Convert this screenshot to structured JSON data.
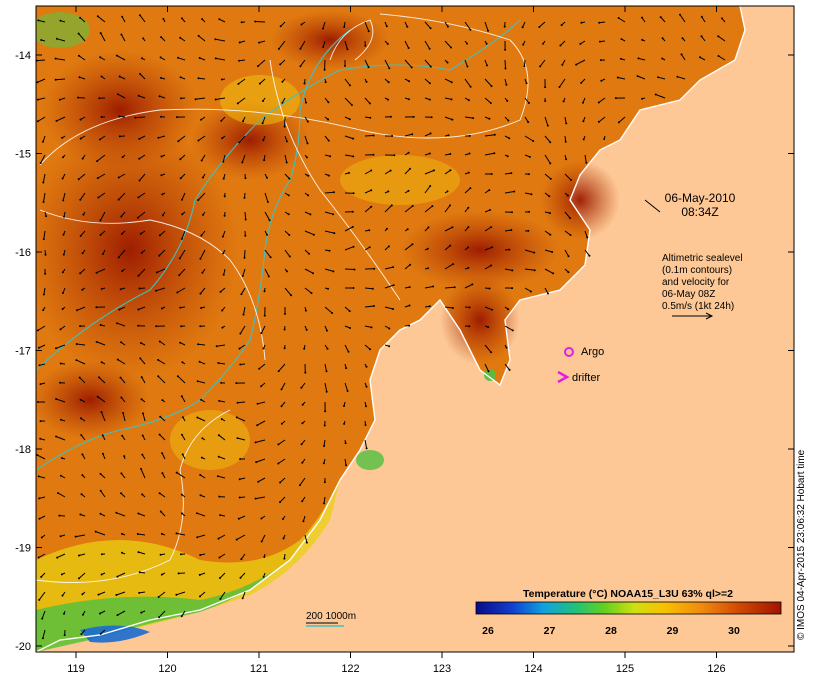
{
  "map": {
    "lon_ticks": [
      "119",
      "120",
      "121",
      "122",
      "123",
      "124",
      "125",
      "126"
    ],
    "lat_ticks": [
      "-14",
      "-15",
      "-16",
      "-17",
      "-18",
      "-19",
      "-20"
    ],
    "timestamp_date": "06-May-2010",
    "timestamp_time": "08:34Z",
    "legend_lines": [
      "Altimetric sealevel",
      "(0.1m contours)",
      "and velocity for",
      "06-May 08Z",
      "0.5m/s (1kt 24h)"
    ],
    "argo_label": "Argo",
    "drifter_label": "drifter",
    "depth_label": "200  1000m",
    "colorbar_title": "Temperature (°C) NOAA15_L3U 63% ql>=2",
    "colorbar_ticks": [
      "26",
      "27",
      "28",
      "29",
      "30"
    ],
    "credit": "© IMOS 04-Apr-2015 23:06:32 Hobart time",
    "colors": {
      "land": "#fdc896",
      "sst_warm": "#a01a00",
      "sst_mid": "#e07a10",
      "sst_cool": "#f4c20a",
      "argo": "#e020e0",
      "depth_contour": "#40c0c0"
    }
  }
}
